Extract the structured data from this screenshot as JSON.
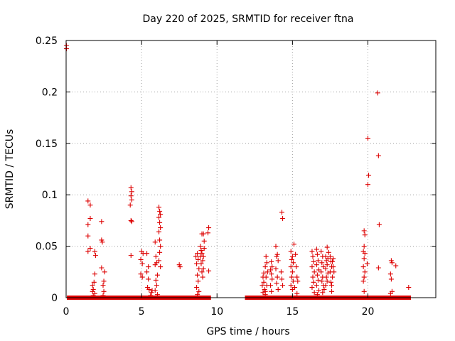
{
  "chart_data": {
    "type": "scatter",
    "title": "Day 220 of 2025, SRMTID for receiver ftna",
    "xlabel": "GPS time / hours",
    "ylabel": "SRMTID / TECUs",
    "xlim": [
      0,
      24.5
    ],
    "ylim": [
      0,
      0.25
    ],
    "x_ticks": [
      0,
      5,
      10,
      15,
      20
    ],
    "y_ticks": [
      0,
      0.05,
      0.1,
      0.15,
      0.2,
      0.25
    ],
    "x_tick_labels": [
      "0",
      "5",
      "10",
      "15",
      "20"
    ],
    "y_tick_labels": [
      "0",
      "0.05",
      "0.1",
      "0.15",
      "0.2",
      "0.25"
    ],
    "grid": true,
    "marker": "plus",
    "color": "#dd0000",
    "baseline_segments": [
      [
        0.05,
        9.6
      ],
      [
        11.85,
        22.85
      ]
    ],
    "series": [
      {
        "name": "SRMTID",
        "points": [
          [
            0.02,
            0.245
          ],
          [
            0.02,
            0.242
          ],
          [
            1.45,
            0.094
          ],
          [
            1.6,
            0.09
          ],
          [
            1.6,
            0.077
          ],
          [
            1.45,
            0.071
          ],
          [
            1.45,
            0.06
          ],
          [
            1.6,
            0.048
          ],
          [
            1.45,
            0.045
          ],
          [
            1.9,
            0.045
          ],
          [
            1.95,
            0.041
          ],
          [
            1.9,
            0.023
          ],
          [
            1.85,
            0.015
          ],
          [
            1.75,
            0.012
          ],
          [
            1.8,
            0.008
          ],
          [
            1.75,
            0.006
          ],
          [
            1.9,
            0.004
          ],
          [
            1.8,
            0.002
          ],
          [
            2.35,
            0.074
          ],
          [
            2.35,
            0.056
          ],
          [
            2.4,
            0.054
          ],
          [
            2.35,
            0.029
          ],
          [
            2.55,
            0.025
          ],
          [
            2.5,
            0.016
          ],
          [
            2.45,
            0.012
          ],
          [
            2.5,
            0.006
          ],
          [
            2.45,
            0.002
          ],
          [
            4.3,
            0.107
          ],
          [
            4.35,
            0.103
          ],
          [
            4.3,
            0.099
          ],
          [
            4.35,
            0.095
          ],
          [
            4.25,
            0.09
          ],
          [
            4.3,
            0.075
          ],
          [
            4.35,
            0.074
          ],
          [
            4.3,
            0.041
          ],
          [
            5.0,
            0.045
          ],
          [
            5.1,
            0.043
          ],
          [
            4.95,
            0.037
          ],
          [
            5.05,
            0.033
          ],
          [
            4.95,
            0.023
          ],
          [
            5.05,
            0.02
          ],
          [
            5.35,
            0.043
          ],
          [
            5.45,
            0.03
          ],
          [
            5.35,
            0.025
          ],
          [
            5.45,
            0.018
          ],
          [
            5.4,
            0.01
          ],
          [
            5.5,
            0.008
          ],
          [
            5.7,
            0.007
          ],
          [
            5.65,
            0.005
          ],
          [
            5.6,
            0.002
          ],
          [
            5.9,
            0.054
          ],
          [
            5.95,
            0.04
          ],
          [
            6.0,
            0.034
          ],
          [
            5.9,
            0.032
          ],
          [
            6.05,
            0.022
          ],
          [
            5.95,
            0.017
          ],
          [
            6.0,
            0.012
          ],
          [
            5.9,
            0.007
          ],
          [
            6.05,
            0.003
          ],
          [
            6.15,
            0.088
          ],
          [
            6.2,
            0.084
          ],
          [
            6.25,
            0.081
          ],
          [
            6.15,
            0.078
          ],
          [
            6.2,
            0.073
          ],
          [
            6.25,
            0.068
          ],
          [
            6.15,
            0.064
          ],
          [
            6.2,
            0.056
          ],
          [
            6.25,
            0.05
          ],
          [
            6.2,
            0.044
          ],
          [
            6.15,
            0.036
          ],
          [
            6.25,
            0.03
          ],
          [
            7.5,
            0.032
          ],
          [
            7.55,
            0.03
          ],
          [
            8.6,
            0.04
          ],
          [
            8.7,
            0.043
          ],
          [
            8.75,
            0.037
          ],
          [
            8.65,
            0.033
          ],
          [
            8.8,
            0.028
          ],
          [
            8.7,
            0.022
          ],
          [
            8.75,
            0.016
          ],
          [
            8.65,
            0.01
          ],
          [
            8.8,
            0.006
          ],
          [
            8.7,
            0.003
          ],
          [
            8.9,
            0.05
          ],
          [
            8.95,
            0.046
          ],
          [
            9.0,
            0.043
          ],
          [
            8.9,
            0.04
          ],
          [
            9.05,
            0.036
          ],
          [
            8.95,
            0.033
          ],
          [
            9.1,
            0.028
          ],
          [
            9.0,
            0.025
          ],
          [
            9.05,
            0.02
          ],
          [
            9.1,
            0.062
          ],
          [
            9.0,
            0.062
          ],
          [
            9.15,
            0.055
          ],
          [
            9.15,
            0.048
          ],
          [
            9.1,
            0.04
          ],
          [
            9.45,
            0.068
          ],
          [
            9.4,
            0.063
          ],
          [
            9.45,
            0.026
          ],
          [
            13.05,
            0.02
          ],
          [
            13.1,
            0.015
          ],
          [
            13.0,
            0.012
          ],
          [
            13.15,
            0.008
          ],
          [
            13.05,
            0.005
          ],
          [
            13.2,
            0.003
          ],
          [
            13.1,
            0.024
          ],
          [
            13.25,
            0.04
          ],
          [
            13.3,
            0.034
          ],
          [
            13.2,
            0.03
          ],
          [
            13.35,
            0.025
          ],
          [
            13.25,
            0.02
          ],
          [
            13.3,
            0.012
          ],
          [
            13.2,
            0.006
          ],
          [
            13.6,
            0.035
          ],
          [
            13.65,
            0.03
          ],
          [
            13.55,
            0.027
          ],
          [
            13.6,
            0.023
          ],
          [
            13.65,
            0.018
          ],
          [
            13.55,
            0.012
          ],
          [
            13.6,
            0.006
          ],
          [
            13.9,
            0.05
          ],
          [
            14.0,
            0.042
          ],
          [
            13.95,
            0.04
          ],
          [
            14.05,
            0.036
          ],
          [
            13.9,
            0.028
          ],
          [
            14.0,
            0.02
          ],
          [
            13.95,
            0.014
          ],
          [
            14.05,
            0.008
          ],
          [
            14.3,
            0.083
          ],
          [
            14.35,
            0.077
          ],
          [
            14.25,
            0.025
          ],
          [
            14.3,
            0.018
          ],
          [
            14.35,
            0.012
          ],
          [
            14.9,
            0.045
          ],
          [
            15.0,
            0.04
          ],
          [
            14.95,
            0.037
          ],
          [
            15.05,
            0.034
          ],
          [
            14.9,
            0.03
          ],
          [
            15.0,
            0.025
          ],
          [
            14.95,
            0.02
          ],
          [
            15.05,
            0.016
          ],
          [
            14.9,
            0.012
          ],
          [
            15.0,
            0.008
          ],
          [
            15.1,
            0.052
          ],
          [
            15.2,
            0.042
          ],
          [
            15.25,
            0.03
          ],
          [
            15.3,
            0.02
          ],
          [
            15.35,
            0.016
          ],
          [
            15.15,
            0.01
          ],
          [
            15.3,
            0.004
          ],
          [
            16.3,
            0.045
          ],
          [
            16.35,
            0.04
          ],
          [
            16.4,
            0.035
          ],
          [
            16.3,
            0.03
          ],
          [
            16.45,
            0.025
          ],
          [
            16.35,
            0.02
          ],
          [
            16.4,
            0.015
          ],
          [
            16.3,
            0.01
          ],
          [
            16.45,
            0.005
          ],
          [
            16.6,
            0.047
          ],
          [
            16.65,
            0.042
          ],
          [
            16.7,
            0.036
          ],
          [
            16.6,
            0.032
          ],
          [
            16.75,
            0.027
          ],
          [
            16.65,
            0.022
          ],
          [
            16.7,
            0.017
          ],
          [
            16.6,
            0.012
          ],
          [
            16.75,
            0.007
          ],
          [
            16.65,
            0.003
          ],
          [
            16.9,
            0.045
          ],
          [
            17.0,
            0.04
          ],
          [
            16.95,
            0.034
          ],
          [
            17.05,
            0.03
          ],
          [
            16.9,
            0.025
          ],
          [
            17.0,
            0.02
          ],
          [
            16.95,
            0.016
          ],
          [
            17.05,
            0.012
          ],
          [
            17.1,
            0.008
          ],
          [
            17.0,
            0.005
          ],
          [
            17.2,
            0.04
          ],
          [
            17.25,
            0.036
          ],
          [
            17.3,
            0.032
          ],
          [
            17.2,
            0.028
          ],
          [
            17.35,
            0.024
          ],
          [
            17.25,
            0.02
          ],
          [
            17.3,
            0.016
          ],
          [
            17.2,
            0.012
          ],
          [
            17.35,
            0.038
          ],
          [
            17.3,
            0.049
          ],
          [
            17.4,
            0.044
          ],
          [
            17.5,
            0.04
          ],
          [
            17.55,
            0.035
          ],
          [
            17.6,
            0.03
          ],
          [
            17.5,
            0.025
          ],
          [
            17.65,
            0.02
          ],
          [
            17.55,
            0.015
          ],
          [
            17.6,
            0.012
          ],
          [
            17.7,
            0.03
          ],
          [
            17.75,
            0.025
          ],
          [
            17.65,
            0.035
          ],
          [
            17.7,
            0.038
          ],
          [
            17.6,
            0.006
          ],
          [
            19.75,
            0.065
          ],
          [
            19.8,
            0.061
          ],
          [
            19.75,
            0.05
          ],
          [
            19.7,
            0.045
          ],
          [
            19.8,
            0.043
          ],
          [
            19.75,
            0.038
          ],
          [
            19.7,
            0.03
          ],
          [
            19.8,
            0.025
          ],
          [
            19.75,
            0.02
          ],
          [
            19.7,
            0.016
          ],
          [
            19.75,
            0.006
          ],
          [
            20.0,
            0.155
          ],
          [
            20.05,
            0.119
          ],
          [
            20.0,
            0.11
          ],
          [
            19.95,
            0.033
          ],
          [
            20.65,
            0.199
          ],
          [
            20.7,
            0.138
          ],
          [
            20.75,
            0.071
          ],
          [
            20.7,
            0.029
          ],
          [
            21.55,
            0.036
          ],
          [
            21.6,
            0.034
          ],
          [
            21.5,
            0.023
          ],
          [
            21.55,
            0.018
          ],
          [
            21.6,
            0.006
          ],
          [
            21.5,
            0.004
          ],
          [
            21.85,
            0.031
          ],
          [
            22.7,
            0.01
          ]
        ]
      }
    ]
  }
}
